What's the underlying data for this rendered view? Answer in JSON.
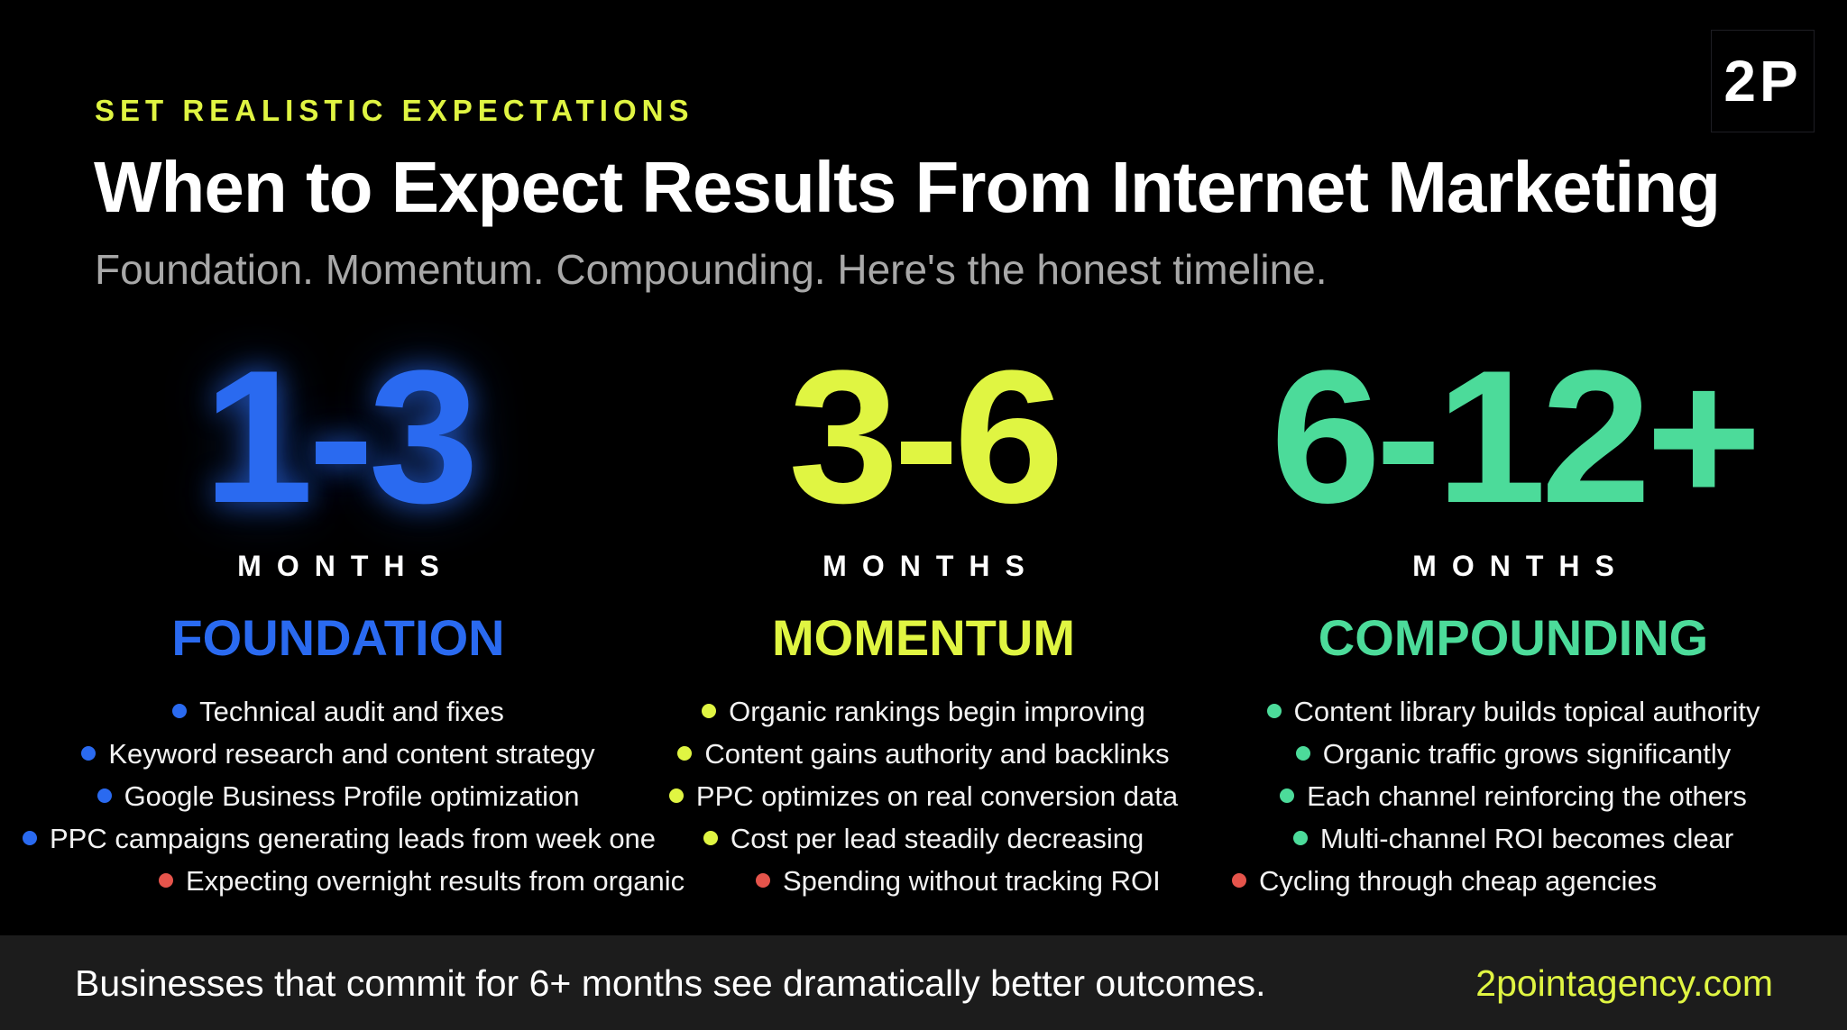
{
  "eyebrow": "SET REALISTIC EXPECTATIONS",
  "title": "When to Expect Results From Internet Marketing",
  "subtitle": "Foundation. Momentum. Compounding. Here's the honest timeline.",
  "logo": "2P",
  "colors": {
    "blue": "#2a6af0",
    "lime": "#e0f542",
    "green": "#4cdb9a",
    "red": "#e5544b",
    "footer_bg": "#1c1c1c"
  },
  "phases": [
    {
      "range": "1-3",
      "unit": "MONTHS",
      "label": "FOUNDATION",
      "items": [
        "Technical audit and fixes",
        "Keyword research and content strategy",
        "Google Business Profile optimization",
        "PPC campaigns generating leads from week one"
      ]
    },
    {
      "range": "3-6",
      "unit": "MONTHS",
      "label": "MOMENTUM",
      "items": [
        "Organic rankings begin improving",
        "Content gains authority and backlinks",
        "PPC optimizes on real conversion data",
        "Cost per lead steadily decreasing"
      ]
    },
    {
      "range": "6-12+",
      "unit": "MONTHS",
      "label": "COMPOUNDING",
      "items": [
        "Content library builds topical authority",
        "Organic traffic grows significantly",
        "Each channel reinforcing the others",
        "Multi-channel ROI becomes clear"
      ]
    }
  ],
  "warnings": [
    "Expecting overnight results from organic",
    "Spending without tracking ROI",
    "Cycling through cheap agencies"
  ],
  "footer": {
    "text": "Businesses that commit for 6+ months see dramatically better outcomes.",
    "url": "2pointagency.com"
  }
}
